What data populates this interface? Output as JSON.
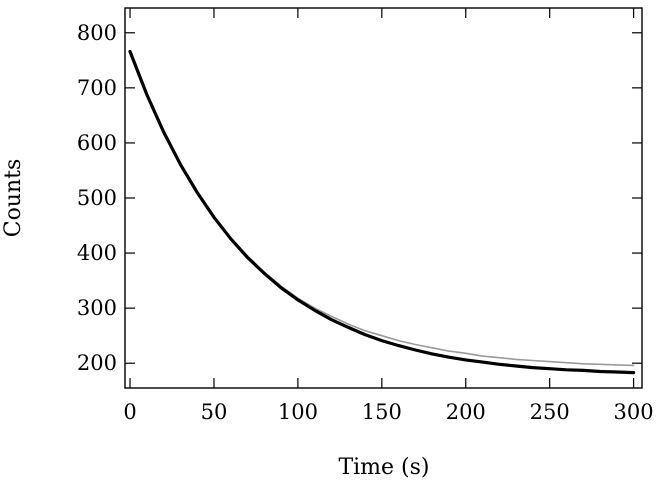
{
  "chart_data": {
    "type": "line",
    "title": "",
    "xlabel": "Time (s)",
    "ylabel": "Counts",
    "xlim": [
      -3,
      305
    ],
    "ylim": [
      155,
      845
    ],
    "xticks": [
      0,
      50,
      100,
      150,
      200,
      250,
      300
    ],
    "yticks": [
      200,
      300,
      400,
      500,
      600,
      700,
      800
    ],
    "grid": false,
    "legend": "none",
    "series": [
      {
        "type": "line",
        "color": "#9a9a9a",
        "x": [
          0,
          10,
          20,
          30,
          40,
          50,
          60,
          70,
          80,
          90,
          100,
          110,
          120,
          130,
          140,
          150,
          160,
          170,
          180,
          190,
          200,
          210,
          220,
          230,
          240,
          250,
          260,
          270,
          280,
          290,
          300
        ],
        "y": [
          766,
          690,
          617,
          560,
          510,
          465,
          427,
          395,
          365,
          340,
          318,
          300,
          285,
          271,
          259,
          250,
          241,
          234,
          228,
          222,
          218,
          213,
          210,
          207,
          205,
          203,
          201,
          199,
          198,
          197,
          196
        ]
      },
      {
        "type": "line",
        "color": "#000000",
        "x": [
          0,
          10,
          20,
          30,
          40,
          50,
          60,
          70,
          80,
          90,
          100,
          110,
          120,
          130,
          140,
          150,
          160,
          170,
          180,
          190,
          200,
          210,
          220,
          230,
          240,
          250,
          260,
          270,
          280,
          290,
          300
        ],
        "y": [
          766,
          688,
          620,
          561,
          510,
          465,
          426,
          392,
          363,
          337,
          315,
          296,
          279,
          265,
          252,
          241,
          232,
          224,
          217,
          211,
          206,
          202,
          198,
          195,
          192,
          190,
          188,
          187,
          185,
          184,
          183
        ]
      }
    ]
  }
}
